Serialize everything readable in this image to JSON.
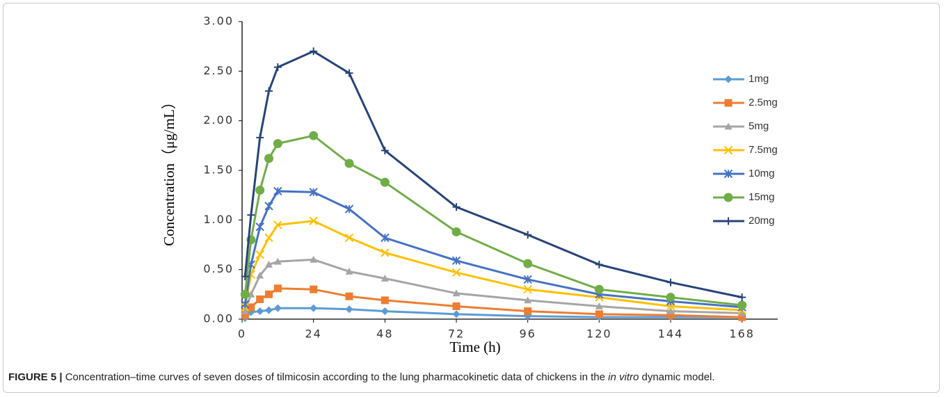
{
  "chart_data": {
    "type": "line",
    "x": [
      1,
      3,
      6,
      9,
      12,
      24,
      36,
      48,
      72,
      96,
      120,
      144,
      168
    ],
    "xlim": [
      0,
      180
    ],
    "xticks": [
      0,
      24,
      48,
      72,
      96,
      120,
      144,
      168
    ],
    "ylim": [
      0,
      3
    ],
    "yticks": [
      {
        "value": 0,
        "label": "0.00"
      },
      {
        "value": 0.5,
        "label": "0.50"
      },
      {
        "value": 1,
        "label": "1.00"
      },
      {
        "value": 1.5,
        "label": "1.50"
      },
      {
        "value": 2,
        "label": "2.00"
      },
      {
        "value": 2.5,
        "label": "2.50"
      },
      {
        "value": 3,
        "label": "3.00"
      }
    ],
    "x_label": "Time (h)",
    "y_label": "Concentration（μg/mL）",
    "series": [
      {
        "name": "1mg",
        "color": "#5b9bd5",
        "marker": "diamond",
        "values": [
          0.01,
          0.07,
          0.08,
          0.09,
          0.11,
          0.11,
          0.1,
          0.08,
          0.05,
          0.03,
          0.02,
          0.02,
          0.02
        ]
      },
      {
        "name": "2.5mg",
        "color": "#ed7d31",
        "marker": "square",
        "values": [
          0.04,
          0.12,
          0.2,
          0.25,
          0.31,
          0.3,
          0.23,
          0.19,
          0.13,
          0.08,
          0.05,
          0.04,
          0.02
        ]
      },
      {
        "name": "5mg",
        "color": "#a5a5a5",
        "marker": "triangle",
        "values": [
          0.08,
          0.25,
          0.44,
          0.55,
          0.58,
          0.6,
          0.48,
          0.41,
          0.26,
          0.19,
          0.13,
          0.08,
          0.06
        ]
      },
      {
        "name": "7.5mg",
        "color": "#ffc000",
        "marker": "x",
        "values": [
          0.12,
          0.45,
          0.65,
          0.82,
          0.95,
          0.99,
          0.82,
          0.67,
          0.47,
          0.3,
          0.22,
          0.13,
          0.09
        ]
      },
      {
        "name": "10mg",
        "color": "#4472c4",
        "marker": "star",
        "values": [
          0.15,
          0.55,
          0.93,
          1.14,
          1.29,
          1.28,
          1.11,
          0.82,
          0.59,
          0.4,
          0.25,
          0.18,
          0.12
        ]
      },
      {
        "name": "15mg",
        "color": "#70ad47",
        "marker": "circle",
        "values": [
          0.25,
          0.8,
          1.3,
          1.62,
          1.77,
          1.85,
          1.57,
          1.38,
          0.88,
          0.56,
          0.3,
          0.22,
          0.14
        ]
      },
      {
        "name": "20mg",
        "color": "#264478",
        "marker": "plus",
        "values": [
          0.43,
          1.05,
          1.83,
          2.3,
          2.54,
          2.7,
          2.48,
          1.7,
          1.13,
          0.85,
          0.55,
          0.37,
          0.22
        ]
      }
    ]
  },
  "caption": {
    "label": "FIGURE 5 |",
    "text_before": " Concentration–time curves of seven doses of tilmicosin according to the lung pharmacokinetic data of chickens in the ",
    "italic": "in vitro",
    "text_after": " dynamic model."
  }
}
